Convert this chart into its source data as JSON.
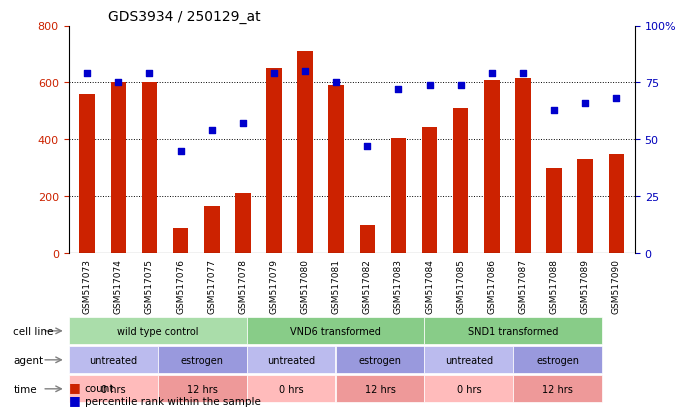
{
  "title": "GDS3934 / 250129_at",
  "samples": [
    "GSM517073",
    "GSM517074",
    "GSM517075",
    "GSM517076",
    "GSM517077",
    "GSM517078",
    "GSM517079",
    "GSM517080",
    "GSM517081",
    "GSM517082",
    "GSM517083",
    "GSM517084",
    "GSM517085",
    "GSM517086",
    "GSM517087",
    "GSM517088",
    "GSM517089",
    "GSM517090"
  ],
  "counts": [
    560,
    600,
    600,
    90,
    165,
    210,
    650,
    710,
    590,
    100,
    405,
    445,
    510,
    610,
    615,
    300,
    330,
    350
  ],
  "percentiles": [
    79,
    75,
    79,
    45,
    54,
    57,
    79,
    80,
    75,
    47,
    72,
    74,
    74,
    79,
    79,
    63,
    66,
    68
  ],
  "bar_color": "#cc2200",
  "dot_color": "#0000cc",
  "ylim_left": [
    0,
    800
  ],
  "ylim_right": [
    0,
    100
  ],
  "yticks_left": [
    0,
    200,
    400,
    600,
    800
  ],
  "yticks_right": [
    0,
    25,
    50,
    75,
    100
  ],
  "ytick_labels_right": [
    "0",
    "25",
    "50",
    "75",
    "100%"
  ],
  "cell_line_groups": [
    {
      "label": "wild type control",
      "start": 0,
      "end": 6,
      "color": "#aaddaa"
    },
    {
      "label": "VND6 transformed",
      "start": 6,
      "end": 12,
      "color": "#aaddaa"
    },
    {
      "label": "SND1 transformed",
      "start": 12,
      "end": 18,
      "color": "#aaddaa"
    }
  ],
  "cell_line_colors": [
    "#bbddbb",
    "#88cc88",
    "#99dd99"
  ],
  "agent_groups": [
    {
      "label": "untreated",
      "start": 0,
      "end": 3,
      "color": "#bbbbee"
    },
    {
      "label": "estrogen",
      "start": 3,
      "end": 6,
      "color": "#9999dd"
    },
    {
      "label": "untreated",
      "start": 6,
      "end": 9,
      "color": "#bbbbee"
    },
    {
      "label": "estrogen",
      "start": 9,
      "end": 12,
      "color": "#9999dd"
    },
    {
      "label": "untreated",
      "start": 12,
      "end": 15,
      "color": "#bbbbee"
    },
    {
      "label": "estrogen",
      "start": 15,
      "end": 18,
      "color": "#9999dd"
    }
  ],
  "time_groups": [
    {
      "label": "0 hrs",
      "start": 0,
      "end": 3,
      "color": "#ffbbbb"
    },
    {
      "label": "12 hrs",
      "start": 3,
      "end": 6,
      "color": "#ee9999"
    },
    {
      "label": "0 hrs",
      "start": 6,
      "end": 9,
      "color": "#ffbbbb"
    },
    {
      "label": "12 hrs",
      "start": 9,
      "end": 12,
      "color": "#ee9999"
    },
    {
      "label": "0 hrs",
      "start": 12,
      "end": 15,
      "color": "#ffbbbb"
    },
    {
      "label": "12 hrs",
      "start": 15,
      "end": 18,
      "color": "#ee9999"
    }
  ],
  "legend_count_color": "#cc2200",
  "legend_pct_color": "#0000cc",
  "bg_color": "#ffffff",
  "axis_label_color_left": "#cc2200",
  "axis_label_color_right": "#0000bb"
}
